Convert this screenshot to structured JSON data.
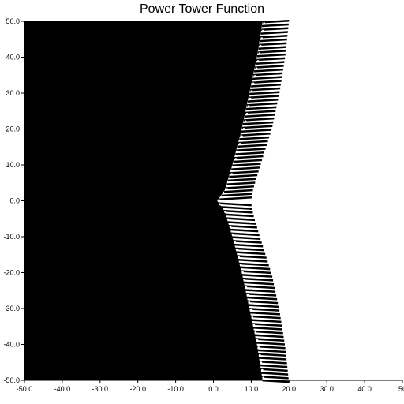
{
  "title": "Power Tower Function",
  "chart_data": {
    "type": "heatmap",
    "title": "Power Tower Function",
    "xlabel": "",
    "ylabel": "",
    "xlim": [
      -50,
      50
    ],
    "ylim": [
      -50,
      50
    ],
    "x_ticks": [
      "-50.0",
      "-40.0",
      "-30.0",
      "-20.0",
      "-10.0",
      "0.0",
      "10.0",
      "20.0",
      "30.0",
      "40.0",
      "50"
    ],
    "y_ticks": [
      "50.0",
      "40.0",
      "30.0",
      "20.0",
      "10.0",
      "0.0",
      "-10.0",
      "-20.0",
      "-30.0",
      "-40.0",
      "-50.0"
    ],
    "grid": false,
    "colors": {
      "diverges": "#000000",
      "converges": "#ffffff",
      "axis": "#000000"
    },
    "boundary": [
      {
        "y": 50,
        "x_inner": 13.0,
        "x_outer": 20.0
      },
      {
        "y": 40,
        "x_inner": 11.5,
        "x_outer": 19.0
      },
      {
        "y": 30,
        "x_inner": 9.5,
        "x_outer": 17.5
      },
      {
        "y": 20,
        "x_inner": 7.5,
        "x_outer": 15.5
      },
      {
        "y": 10,
        "x_inner": 5.0,
        "x_outer": 12.5
      },
      {
        "y": 3,
        "x_inner": 3.0,
        "x_outer": 10.5
      },
      {
        "y": 0,
        "x_inner": 1.0,
        "x_outer": 10.0
      },
      {
        "y": -3,
        "x_inner": 3.0,
        "x_outer": 10.5
      },
      {
        "y": -10,
        "x_inner": 5.0,
        "x_outer": 12.5
      },
      {
        "y": -20,
        "x_inner": 7.5,
        "x_outer": 15.5
      },
      {
        "y": -30,
        "x_inner": 9.5,
        "x_outer": 17.5
      },
      {
        "y": -40,
        "x_inner": 11.5,
        "x_outer": 19.0
      },
      {
        "y": -50,
        "x_inner": 13.0,
        "x_outer": 20.0
      }
    ]
  }
}
